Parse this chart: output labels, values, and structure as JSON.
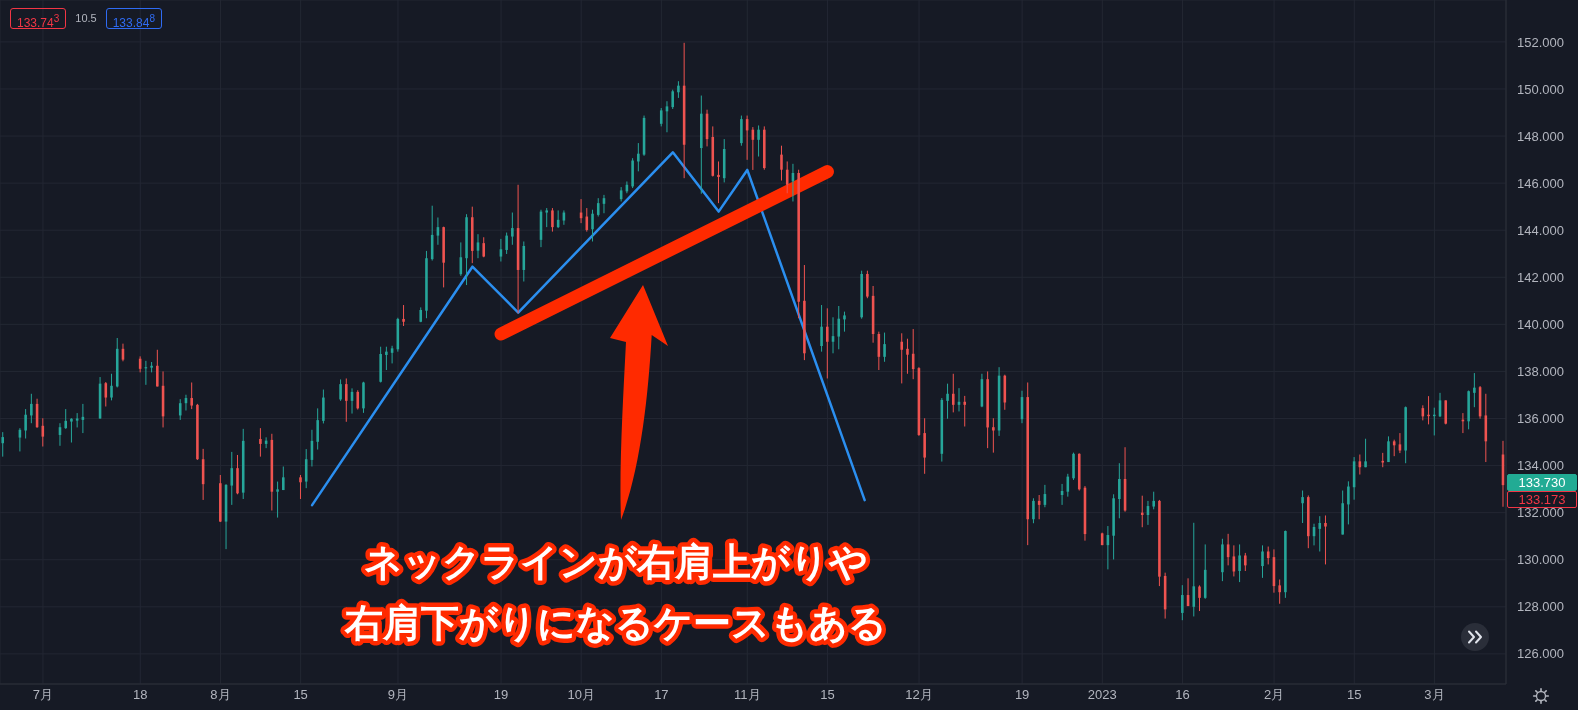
{
  "chart_data": {
    "type": "candlestick",
    "x": [
      "2022-06-24",
      "2022-06-27",
      "2022-06-28",
      "2022-06-29",
      "2022-06-30",
      "2022-07-01",
      "2022-07-04",
      "2022-07-05",
      "2022-07-06",
      "2022-07-07",
      "2022-07-08",
      "2022-07-11",
      "2022-07-12",
      "2022-07-13",
      "2022-07-14",
      "2022-07-15",
      "2022-07-18",
      "2022-07-19",
      "2022-07-20",
      "2022-07-21",
      "2022-07-22",
      "2022-07-25",
      "2022-07-26",
      "2022-07-27",
      "2022-07-28",
      "2022-07-29",
      "2022-08-01",
      "2022-08-02",
      "2022-08-03",
      "2022-08-04",
      "2022-08-05",
      "2022-08-08",
      "2022-08-09",
      "2022-08-10",
      "2022-08-11",
      "2022-08-12",
      "2022-08-15",
      "2022-08-16",
      "2022-08-17",
      "2022-08-18",
      "2022-08-19",
      "2022-08-22",
      "2022-08-23",
      "2022-08-24",
      "2022-08-25",
      "2022-08-26",
      "2022-08-29",
      "2022-08-30",
      "2022-08-31",
      "2022-09-01",
      "2022-09-02",
      "2022-09-05",
      "2022-09-06",
      "2022-09-07",
      "2022-09-08",
      "2022-09-09",
      "2022-09-12",
      "2022-09-13",
      "2022-09-14",
      "2022-09-15",
      "2022-09-16",
      "2022-09-19",
      "2022-09-20",
      "2022-09-21",
      "2022-09-22",
      "2022-09-23",
      "2022-09-26",
      "2022-09-27",
      "2022-09-28",
      "2022-09-29",
      "2022-09-30",
      "2022-10-03",
      "2022-10-04",
      "2022-10-05",
      "2022-10-06",
      "2022-10-07",
      "2022-10-10",
      "2022-10-11",
      "2022-10-12",
      "2022-10-13",
      "2022-10-14",
      "2022-10-17",
      "2022-10-18",
      "2022-10-19",
      "2022-10-20",
      "2022-10-21",
      "2022-10-24",
      "2022-10-25",
      "2022-10-26",
      "2022-10-27",
      "2022-10-28",
      "2022-10-31",
      "2022-11-01",
      "2022-11-02",
      "2022-11-03",
      "2022-11-04",
      "2022-11-07",
      "2022-11-08",
      "2022-11-09",
      "2022-11-10",
      "2022-11-11",
      "2022-11-14",
      "2022-11-15",
      "2022-11-16",
      "2022-11-17",
      "2022-11-18",
      "2022-11-21",
      "2022-11-22",
      "2022-11-23",
      "2022-11-24",
      "2022-11-25",
      "2022-11-28",
      "2022-11-29",
      "2022-11-30",
      "2022-12-01",
      "2022-12-02",
      "2022-12-05",
      "2022-12-06",
      "2022-12-07",
      "2022-12-08",
      "2022-12-09",
      "2022-12-12",
      "2022-12-13",
      "2022-12-14",
      "2022-12-15",
      "2022-12-16",
      "2022-12-19",
      "2022-12-20",
      "2022-12-21",
      "2022-12-22",
      "2022-12-23",
      "2022-12-26",
      "2022-12-27",
      "2022-12-28",
      "2022-12-29",
      "2022-12-30",
      "2023-01-02",
      "2023-01-03",
      "2023-01-04",
      "2023-01-05",
      "2023-01-06",
      "2023-01-09",
      "2023-01-10",
      "2023-01-11",
      "2023-01-12",
      "2023-01-13",
      "2023-01-16",
      "2023-01-17",
      "2023-01-18",
      "2023-01-19",
      "2023-01-20",
      "2023-01-23",
      "2023-01-24",
      "2023-01-25",
      "2023-01-26",
      "2023-01-27",
      "2023-01-30",
      "2023-01-31",
      "2023-02-01",
      "2023-02-02",
      "2023-02-03",
      "2023-02-06",
      "2023-02-07",
      "2023-02-08",
      "2023-02-09",
      "2023-02-10",
      "2023-02-13",
      "2023-02-14",
      "2023-02-15",
      "2023-02-16",
      "2023-02-17",
      "2023-02-20",
      "2023-02-21",
      "2023-02-22",
      "2023-02-23",
      "2023-02-24",
      "2023-02-27",
      "2023-02-28",
      "2023-03-01",
      "2023-03-02",
      "2023-03-03",
      "2023-03-06",
      "2023-03-07",
      "2023-03-08",
      "2023-03-09",
      "2023-03-10",
      "2023-03-13"
    ],
    "ohlc": [
      [
        134.95,
        135.42,
        134.38,
        135.21
      ],
      [
        135.19,
        135.59,
        134.6,
        135.52
      ],
      [
        135.49,
        136.4,
        135.15,
        136.16
      ],
      [
        136.13,
        137.05,
        135.8,
        136.62
      ],
      [
        136.62,
        136.84,
        135.6,
        135.63
      ],
      [
        135.69,
        136.01,
        134.81,
        135.23
      ],
      [
        135.3,
        135.8,
        134.84,
        135.63
      ],
      [
        135.59,
        136.4,
        135.56,
        135.9
      ],
      [
        135.87,
        136.01,
        134.98,
        135.99
      ],
      [
        135.91,
        136.23,
        135.62,
        136.0
      ],
      [
        135.94,
        136.62,
        135.38,
        136.07
      ],
      [
        136.0,
        137.76,
        135.99,
        137.48
      ],
      [
        137.5,
        137.55,
        136.51,
        136.89
      ],
      [
        136.89,
        137.9,
        136.77,
        137.39
      ],
      [
        137.36,
        139.42,
        137.32,
        138.96
      ],
      [
        138.96,
        139.18,
        138.43,
        138.5
      ],
      [
        138.54,
        138.64,
        137.96,
        138.11
      ],
      [
        138.13,
        138.45,
        137.43,
        138.18
      ],
      [
        138.16,
        138.4,
        137.96,
        138.24
      ],
      [
        138.24,
        138.92,
        137.36,
        137.36
      ],
      [
        137.39,
        138.0,
        135.62,
        136.09
      ],
      [
        136.13,
        136.82,
        135.94,
        136.65
      ],
      [
        136.65,
        137.01,
        136.34,
        136.87
      ],
      [
        136.87,
        137.53,
        136.4,
        136.55
      ],
      [
        136.58,
        136.62,
        134.24,
        134.27
      ],
      [
        134.27,
        134.71,
        132.54,
        133.21
      ],
      [
        133.25,
        133.6,
        131.6,
        131.62
      ],
      [
        131.62,
        133.21,
        130.45,
        133.18
      ],
      [
        133.15,
        134.58,
        132.33,
        133.89
      ],
      [
        133.89,
        134.45,
        132.78,
        132.82
      ],
      [
        132.85,
        135.56,
        132.58,
        135.05
      ],
      [
        135.13,
        135.59,
        134.38,
        134.92
      ],
      [
        134.92,
        135.2,
        134.74,
        135.06
      ],
      [
        135.09,
        135.35,
        132.09,
        132.89
      ],
      [
        132.89,
        133.32,
        131.79,
        132.99
      ],
      [
        132.96,
        133.96,
        132.96,
        133.5
      ],
      [
        133.5,
        133.6,
        132.58,
        133.29
      ],
      [
        133.32,
        134.7,
        133.04,
        134.27
      ],
      [
        134.24,
        135.52,
        133.96,
        135.05
      ],
      [
        135.01,
        136.43,
        134.68,
        135.93
      ],
      [
        135.9,
        137.23,
        135.79,
        136.89
      ],
      [
        136.81,
        137.66,
        136.75,
        137.46
      ],
      [
        137.46,
        137.7,
        135.86,
        136.75
      ],
      [
        136.75,
        137.28,
        136.21,
        137.13
      ],
      [
        137.13,
        137.2,
        136.38,
        136.43
      ],
      [
        136.43,
        137.56,
        136.24,
        137.53
      ],
      [
        137.56,
        139.05,
        137.53,
        138.74
      ],
      [
        138.7,
        139.05,
        138.06,
        138.84
      ],
      [
        138.79,
        139.09,
        138.34,
        138.98
      ],
      [
        138.94,
        140.28,
        138.84,
        140.23
      ],
      [
        140.23,
        140.82,
        139.93,
        140.11
      ],
      [
        140.11,
        140.72,
        140.09,
        140.61
      ],
      [
        140.58,
        143.12,
        140.26,
        142.81
      ],
      [
        142.77,
        145.04,
        142.71,
        143.8
      ],
      [
        143.77,
        144.54,
        143.38,
        144.13
      ],
      [
        144.13,
        144.15,
        141.57,
        142.62
      ],
      [
        142.13,
        143.48,
        142.06,
        142.85
      ],
      [
        142.81,
        144.68,
        141.67,
        144.55
      ],
      [
        144.55,
        145.0,
        142.6,
        143.12
      ],
      [
        143.13,
        143.83,
        142.81,
        143.48
      ],
      [
        143.45,
        143.7,
        142.85,
        142.88
      ],
      [
        142.88,
        143.63,
        142.67,
        143.19
      ],
      [
        143.16,
        143.9,
        142.99,
        143.77
      ],
      [
        143.73,
        144.75,
        143.38,
        144.09
      ],
      [
        144.09,
        145.93,
        140.47,
        142.31
      ],
      [
        142.31,
        143.52,
        141.82,
        143.33
      ],
      [
        143.59,
        144.87,
        143.28,
        144.79
      ],
      [
        144.75,
        144.94,
        144.13,
        144.84
      ],
      [
        144.84,
        144.94,
        143.94,
        144.13
      ],
      [
        144.13,
        144.84,
        144.09,
        144.44
      ],
      [
        144.41,
        144.84,
        144.23,
        144.75
      ],
      [
        144.75,
        145.32,
        144.3,
        144.51
      ],
      [
        144.58,
        144.94,
        143.94,
        144.01
      ],
      [
        144.04,
        144.87,
        143.52,
        144.7
      ],
      [
        144.65,
        145.36,
        144.58,
        145.15
      ],
      [
        145.12,
        145.5,
        144.72,
        145.36
      ],
      [
        145.32,
        145.83,
        145.22,
        145.69
      ],
      [
        145.65,
        146.07,
        145.57,
        145.93
      ],
      [
        145.86,
        147.06,
        145.79,
        146.96
      ],
      [
        146.92,
        147.7,
        146.5,
        147.25
      ],
      [
        147.21,
        148.87,
        147.16,
        148.77
      ],
      [
        148.52,
        149.19,
        148.41,
        149.09
      ],
      [
        149.05,
        149.48,
        148.16,
        149.26
      ],
      [
        149.23,
        149.97,
        149.15,
        149.9
      ],
      [
        149.86,
        150.33,
        149.62,
        150.14
      ],
      [
        150.14,
        151.96,
        146.21,
        147.63
      ],
      [
        147.49,
        149.72,
        145.55,
        148.95
      ],
      [
        148.95,
        149.12,
        147.56,
        147.87
      ],
      [
        147.96,
        148.41,
        146.28,
        146.31
      ],
      [
        146.35,
        146.92,
        145.15,
        146.26
      ],
      [
        146.21,
        147.87,
        146.03,
        147.45
      ],
      [
        147.7,
        148.87,
        147.59,
        148.72
      ],
      [
        148.72,
        148.87,
        146.99,
        148.24
      ],
      [
        148.27,
        148.38,
        146.56,
        147.84
      ],
      [
        147.84,
        148.45,
        147.13,
        148.27
      ],
      [
        148.27,
        148.41,
        146.57,
        146.64
      ],
      [
        147.21,
        147.59,
        146.11,
        146.57
      ],
      [
        146.57,
        146.92,
        145.57,
        145.93
      ],
      [
        146.07,
        146.82,
        145.22,
        146.43
      ],
      [
        146.43,
        146.57,
        140.26,
        140.96
      ],
      [
        141.0,
        142.52,
        138.48,
        138.77
      ],
      [
        139.08,
        140.82,
        138.84,
        139.9
      ],
      [
        139.9,
        140.68,
        137.7,
        139.26
      ],
      [
        139.26,
        140.3,
        138.77,
        139.5
      ],
      [
        139.48,
        140.78,
        138.94,
        140.24
      ],
      [
        140.21,
        140.54,
        139.69,
        140.38
      ],
      [
        140.3,
        142.28,
        140.24,
        142.14
      ],
      [
        142.14,
        142.28,
        141.11,
        141.18
      ],
      [
        141.21,
        141.63,
        139.22,
        139.59
      ],
      [
        139.59,
        139.69,
        138.06,
        138.62
      ],
      [
        138.62,
        139.65,
        138.41,
        139.16
      ],
      [
        139.26,
        139.62,
        137.49,
        138.92
      ],
      [
        138.96,
        139.39,
        137.9,
        138.71
      ],
      [
        138.75,
        139.8,
        137.67,
        138.1
      ],
      [
        138.14,
        138.18,
        135.26,
        135.3
      ],
      [
        135.38,
        136.01,
        133.65,
        134.34
      ],
      [
        134.5,
        136.87,
        134.17,
        136.79
      ],
      [
        136.75,
        137.48,
        135.99,
        137.05
      ],
      [
        137.05,
        137.9,
        136.26,
        136.58
      ],
      [
        136.58,
        137.29,
        136.3,
        136.71
      ],
      [
        136.71,
        136.96,
        135.66,
        136.58
      ],
      [
        136.51,
        137.9,
        136.48,
        137.67
      ],
      [
        137.67,
        138.0,
        134.74,
        135.62
      ],
      [
        135.63,
        136.01,
        134.55,
        135.49
      ],
      [
        135.49,
        138.18,
        135.26,
        137.82
      ],
      [
        137.82,
        137.86,
        136.37,
        136.68
      ],
      [
        135.97,
        137.18,
        135.8,
        136.91
      ],
      [
        136.91,
        137.53,
        130.62,
        131.72
      ],
      [
        131.72,
        132.61,
        131.55,
        132.5
      ],
      [
        132.5,
        132.75,
        131.72,
        132.33
      ],
      [
        132.33,
        133.18,
        132.23,
        132.79
      ],
      [
        132.75,
        133.22,
        132.33,
        132.92
      ],
      [
        132.89,
        133.65,
        132.68,
        133.53
      ],
      [
        133.46,
        134.55,
        133.39,
        134.5
      ],
      [
        134.5,
        134.52,
        132.94,
        132.99
      ],
      [
        133.06,
        133.13,
        130.81,
        131.09
      ],
      [
        131.12,
        131.15,
        130.62,
        130.62
      ],
      [
        130.62,
        131.43,
        129.59,
        131.05
      ],
      [
        131.02,
        132.78,
        130.01,
        132.61
      ],
      [
        132.58,
        134.1,
        131.76,
        133.43
      ],
      [
        133.43,
        134.78,
        132.04,
        132.09
      ],
      [
        132.0,
        132.72,
        131.38,
        131.9
      ],
      [
        131.9,
        132.5,
        131.48,
        132.28
      ],
      [
        132.26,
        132.89,
        132.14,
        132.5
      ],
      [
        132.5,
        132.54,
        128.88,
        129.28
      ],
      [
        129.31,
        129.45,
        127.5,
        127.89
      ],
      [
        127.74,
        128.92,
        127.43,
        128.5
      ],
      [
        128.5,
        129.21,
        128.03,
        128.03
      ],
      [
        128.0,
        131.57,
        127.59,
        128.87
      ],
      [
        128.86,
        128.91,
        127.82,
        128.38
      ],
      [
        128.38,
        130.65,
        128.34,
        129.57
      ],
      [
        129.47,
        130.89,
        129.09,
        130.65
      ],
      [
        130.65,
        131.1,
        129.76,
        130.11
      ],
      [
        130.14,
        130.61,
        129.29,
        129.5
      ],
      [
        129.52,
        130.65,
        129.05,
        130.18
      ],
      [
        130.18,
        130.29,
        129.52,
        129.76
      ],
      [
        129.73,
        130.61,
        129.23,
        130.35
      ],
      [
        130.35,
        130.56,
        129.8,
        130.07
      ],
      [
        130.11,
        130.44,
        128.6,
        128.88
      ],
      [
        128.91,
        129.16,
        128.13,
        128.62
      ],
      [
        128.62,
        131.24,
        128.38,
        131.22
      ],
      [
        132.4,
        132.94,
        131.56,
        132.66
      ],
      [
        132.66,
        132.73,
        130.49,
        131.0
      ],
      [
        131.0,
        131.53,
        130.61,
        131.39
      ],
      [
        131.31,
        131.85,
        130.35,
        131.56
      ],
      [
        131.56,
        131.88,
        129.8,
        131.41
      ],
      [
        131.07,
        132.94,
        131.07,
        132.4
      ],
      [
        132.35,
        133.33,
        131.5,
        133.11
      ],
      [
        133.08,
        134.36,
        132.55,
        134.18
      ],
      [
        134.18,
        134.47,
        133.62,
        133.93
      ],
      [
        133.93,
        135.14,
        133.93,
        134.18
      ],
      [
        134.2,
        134.54,
        133.93,
        134.13
      ],
      [
        134.15,
        135.24,
        134.15,
        135.03
      ],
      [
        135.03,
        135.1,
        134.4,
        134.86
      ],
      [
        134.9,
        135.38,
        134.53,
        134.64
      ],
      [
        134.64,
        136.51,
        134.1,
        136.48
      ],
      [
        136.44,
        136.56,
        135.92,
        136.09
      ],
      [
        136.16,
        136.95,
        135.75,
        136.1
      ],
      [
        136.1,
        136.46,
        135.28,
        136.16
      ],
      [
        136.09,
        137.09,
        136.06,
        136.77
      ],
      [
        136.77,
        136.77,
        135.75,
        135.78
      ],
      [
        135.95,
        136.23,
        135.38,
        135.88
      ],
      [
        135.88,
        137.19,
        135.54,
        137.16
      ],
      [
        137.09,
        137.93,
        136.48,
        137.31
      ],
      [
        137.33,
        137.38,
        135.99,
        136.09
      ],
      [
        136.13,
        137.05,
        134.15,
        135.03
      ],
      [
        134.47,
        135.05,
        132.25,
        133.17
      ]
    ],
    "colors": [
      "#26a69a",
      "#26a69a",
      "#26a69a",
      "#26a69a",
      "#ef5350",
      "#ef5350",
      "#26a69a",
      "#26a69a",
      "#26a69a",
      "#26a69a",
      "#26a69a",
      "#26a69a",
      "#ef5350",
      "#26a69a",
      "#26a69a",
      "#ef5350",
      "#ef5350",
      "#26a69a",
      "#26a69a",
      "#ef5350",
      "#ef5350",
      "#26a69a",
      "#26a69a",
      "#ef5350",
      "#ef5350",
      "#ef5350",
      "#ef5350",
      "#26a69a",
      "#26a69a",
      "#ef5350",
      "#26a69a",
      "#ef5350",
      "#26a69a",
      "#ef5350",
      "#26a69a",
      "#26a69a",
      "#ef5350",
      "#26a69a",
      "#26a69a",
      "#26a69a",
      "#26a69a",
      "#26a69a",
      "#ef5350",
      "#26a69a",
      "#ef5350",
      "#26a69a",
      "#26a69a",
      "#26a69a",
      "#26a69a",
      "#26a69a",
      "#ef5350",
      "#26a69a",
      "#26a69a",
      "#26a69a",
      "#26a69a",
      "#ef5350",
      "#26a69a",
      "#26a69a",
      "#ef5350",
      "#26a69a",
      "#ef5350",
      "#26a69a",
      "#26a69a",
      "#26a69a",
      "#ef5350",
      "#26a69a",
      "#26a69a",
      "#26a69a",
      "#ef5350",
      "#26a69a",
      "#26a69a",
      "#ef5350",
      "#ef5350",
      "#26a69a",
      "#26a69a",
      "#26a69a",
      "#26a69a",
      "#26a69a",
      "#26a69a",
      "#26a69a",
      "#26a69a",
      "#26a69a",
      "#26a69a",
      "#26a69a",
      "#26a69a",
      "#ef5350",
      "#26a69a",
      "#ef5350",
      "#ef5350",
      "#ef5350",
      "#26a69a",
      "#26a69a",
      "#ef5350",
      "#ef5350",
      "#26a69a",
      "#ef5350",
      "#ef5350",
      "#ef5350",
      "#26a69a",
      "#ef5350",
      "#ef5350",
      "#26a69a",
      "#ef5350",
      "#26a69a",
      "#26a69a",
      "#26a69a",
      "#26a69a",
      "#ef5350",
      "#ef5350",
      "#ef5350",
      "#26a69a",
      "#ef5350",
      "#ef5350",
      "#ef5350",
      "#ef5350",
      "#ef5350",
      "#26a69a",
      "#26a69a",
      "#ef5350",
      "#26a69a",
      "#ef5350",
      "#26a69a",
      "#ef5350",
      "#ef5350",
      "#26a69a",
      "#ef5350",
      "#26a69a",
      "#ef5350",
      "#26a69a",
      "#ef5350",
      "#26a69a",
      "#26a69a",
      "#26a69a",
      "#26a69a",
      "#ef5350",
      "#ef5350",
      "#ef5350",
      "#26a69a",
      "#26a69a",
      "#26a69a",
      "#ef5350",
      "#ef5350",
      "#26a69a",
      "#26a69a",
      "#ef5350",
      "#ef5350",
      "#26a69a",
      "#ef5350",
      "#26a69a",
      "#ef5350",
      "#26a69a",
      "#26a69a",
      "#ef5350",
      "#ef5350",
      "#26a69a",
      "#ef5350",
      "#26a69a",
      "#ef5350",
      "#ef5350",
      "#ef5350",
      "#26a69a",
      "#26a69a",
      "#ef5350",
      "#26a69a",
      "#26a69a",
      "#ef5350",
      "#26a69a",
      "#26a69a",
      "#26a69a",
      "#ef5350",
      "#26a69a",
      "#ef5350",
      "#26a69a",
      "#ef5350",
      "#ef5350",
      "#26a69a",
      "#ef5350",
      "#ef5350",
      "#26a69a",
      "#26a69a",
      "#ef5350",
      "#ef5350",
      "#26a69a",
      "#26a69a",
      "#ef5350",
      "#ef5350",
      "#ef5350"
    ],
    "series": [
      {
        "type": "line",
        "color": "#2b8ff0",
        "x": [
          "2022-08-17",
          "2022-09-14",
          "2022-09-22",
          "2022-10-19",
          "2022-10-27",
          "2022-11-01",
          "2022-11-21T12:00"
        ],
        "values": [
          132.32,
          142.45,
          140.5,
          147.31,
          144.79,
          146.56,
          132.53
        ]
      },
      {
        "type": "line",
        "color": "#ff2a00",
        "x": [
          "2022-09-19",
          "2022-11-15"
        ],
        "values": [
          139.59,
          146.49
        ]
      }
    ],
    "xlim": [
      "2022-06-23T12:00",
      "2023-03-13T12:00"
    ],
    "xticks": [
      {
        "value": "2022-07-01",
        "label": "7月"
      },
      {
        "value": "2022-07-18",
        "label": "18"
      },
      {
        "value": "2022-08-01",
        "label": "8月"
      },
      {
        "value": "2022-08-15",
        "label": "15"
      },
      {
        "value": "2022-09-01",
        "label": "9月"
      },
      {
        "value": "2022-09-19",
        "label": "19"
      },
      {
        "value": "2022-10-03",
        "label": "10月"
      },
      {
        "value": "2022-10-17",
        "label": "17"
      },
      {
        "value": "2022-11-01",
        "label": "11月"
      },
      {
        "value": "2022-11-15",
        "label": "15"
      },
      {
        "value": "2022-12-01",
        "label": "12月"
      },
      {
        "value": "2022-12-19",
        "label": "19"
      },
      {
        "value": "2023-01-02",
        "label": "2023"
      },
      {
        "value": "2023-01-16",
        "label": "16"
      },
      {
        "value": "2023-02-01",
        "label": "2月"
      },
      {
        "value": "2023-02-15",
        "label": "15"
      },
      {
        "value": "2023-03-01",
        "label": "3月"
      }
    ],
    "ylim": [
      124.72,
      153.78
    ],
    "yticks": [
      {
        "value": 126,
        "label": "126.000"
      },
      {
        "value": 128,
        "label": "128.000"
      },
      {
        "value": 130,
        "label": "130.000"
      },
      {
        "value": 132,
        "label": "132.000"
      },
      {
        "value": 134,
        "label": "134.000"
      },
      {
        "value": 136,
        "label": "136.000"
      },
      {
        "value": 138,
        "label": "138.000"
      },
      {
        "value": 140,
        "label": "140.000"
      },
      {
        "value": 142,
        "label": "142.000"
      },
      {
        "value": 144,
        "label": "144.000"
      },
      {
        "value": 146,
        "label": "146.000"
      },
      {
        "value": 148,
        "label": "148.000"
      },
      {
        "value": 150,
        "label": "150.000"
      },
      {
        "value": 152,
        "label": "152.000"
      }
    ],
    "grid": true,
    "annotations": [
      "133.74$^{3}$",
      "10.5",
      "133.84$^{8}$",
      "133.730",
      "133.173",
      "ネックラインが右肩上がりや",
      "右肩下がりになるケースもある"
    ]
  }
}
